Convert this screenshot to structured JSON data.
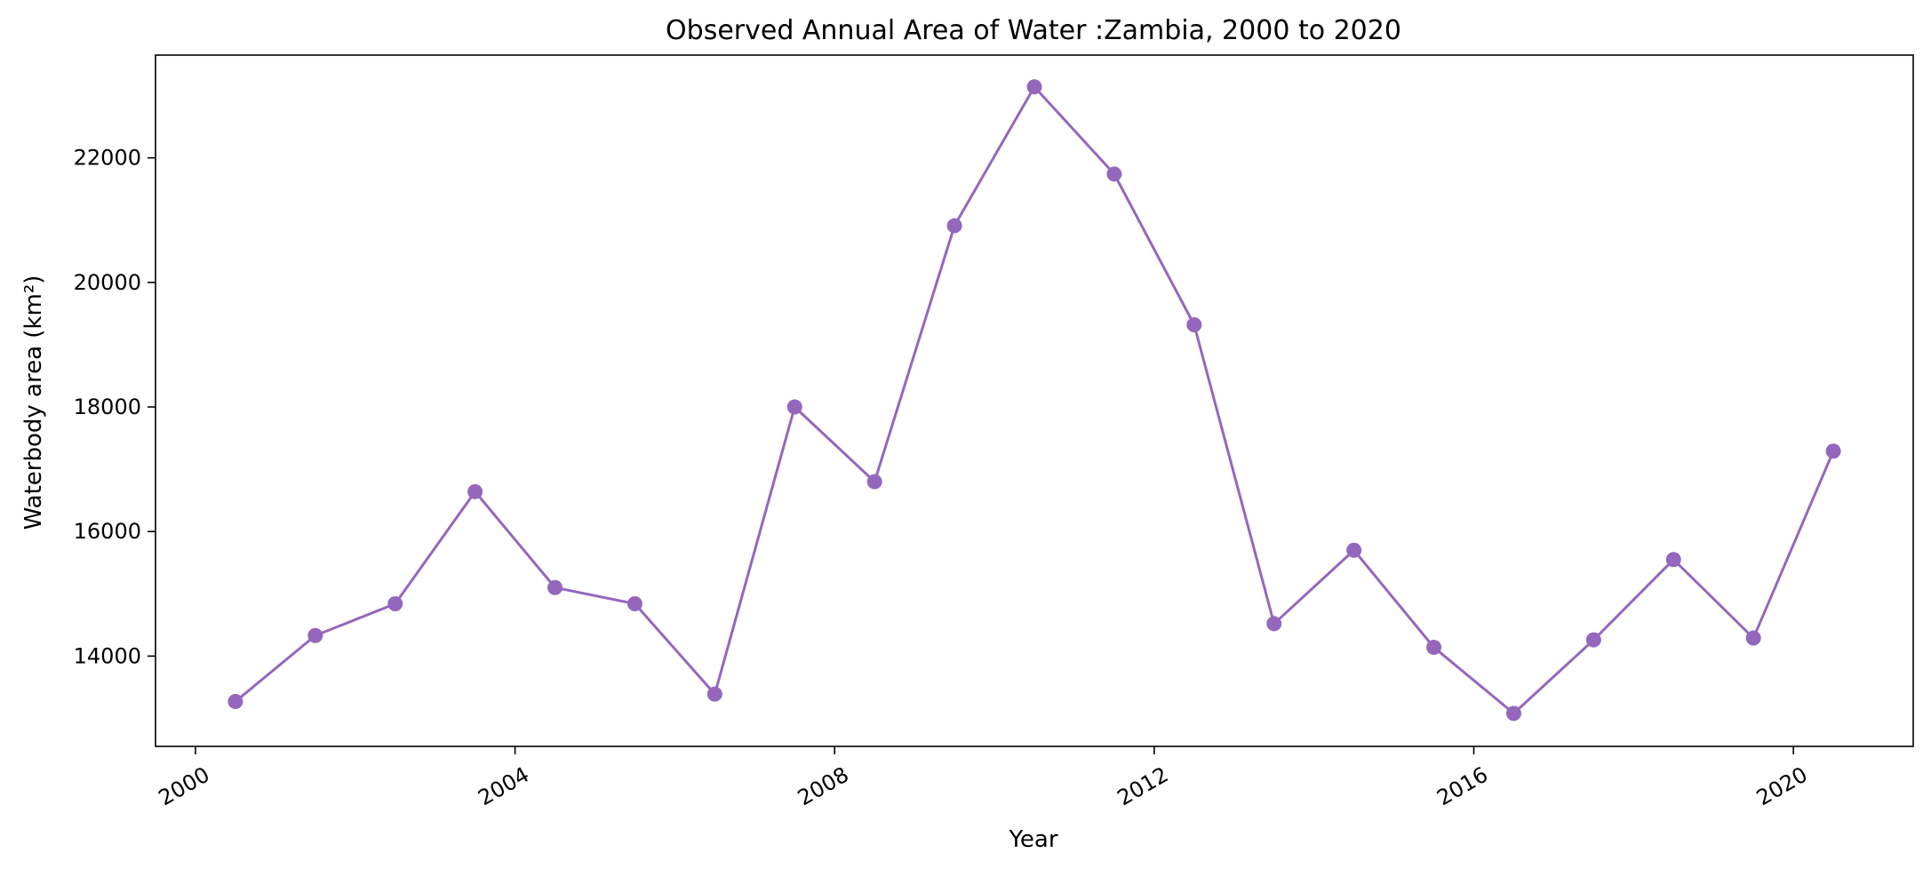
{
  "chart_data": {
    "type": "line",
    "title": "Observed Annual Area of Water :Zambia, 2000 to 2020",
    "xlabel": "Year",
    "ylabel": "Waterbody area (km²)",
    "x": [
      2000.5,
      2001.5,
      2002.5,
      2003.5,
      2004.5,
      2005.5,
      2006.5,
      2007.5,
      2008.5,
      2009.5,
      2010.5,
      2011.5,
      2012.5,
      2013.5,
      2014.5,
      2015.5,
      2016.5,
      2017.5,
      2018.5,
      2019.5,
      2020.5
    ],
    "y": [
      13270,
      14330,
      14840,
      16640,
      15100,
      14840,
      13390,
      18000,
      16800,
      20910,
      23140,
      21740,
      19320,
      14520,
      15700,
      14140,
      13080,
      14260,
      15550,
      14290,
      17290
    ],
    "xlim": [
      1999.5,
      2021.5
    ],
    "ylim": [
      12550,
      23650
    ],
    "xticks": [
      2000,
      2004,
      2008,
      2012,
      2016,
      2020
    ],
    "xtick_labels": [
      "2000",
      "2004",
      "2008",
      "2012",
      "2016",
      "2020"
    ],
    "yticks": [
      14000,
      16000,
      18000,
      20000,
      22000
    ],
    "ytick_labels": [
      "14000",
      "16000",
      "18000",
      "20000",
      "22000"
    ],
    "grid": false,
    "colors": {
      "series": "#9467bd"
    }
  }
}
